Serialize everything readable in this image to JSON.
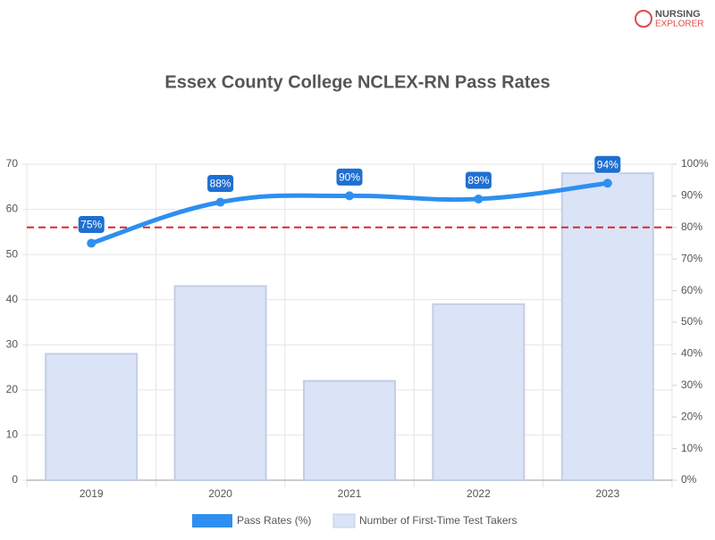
{
  "logo": {
    "line1": "NURSING",
    "line2": "EXPLORER"
  },
  "chart_data": {
    "type": "bar_line",
    "title": "Essex County College NCLEX-RN Pass Rates",
    "categories": [
      "2019",
      "2020",
      "2021",
      "2022",
      "2023"
    ],
    "series": [
      {
        "name": "Pass Rates (%)",
        "color": "#2e8ff0",
        "axis": "y2",
        "kind": "line",
        "values": [
          75,
          88,
          90,
          89,
          94
        ],
        "value_labels": [
          "75%",
          "88%",
          "90%",
          "89%",
          "94%"
        ]
      },
      {
        "name": "Number of First-Time Test Takers",
        "color": "#dbe3f7",
        "axis": "y",
        "kind": "bar",
        "values": [
          28,
          43,
          22,
          39,
          68
        ]
      }
    ],
    "reference_line": {
      "value": 80,
      "axis": "y2",
      "color": "#e0262b"
    },
    "ylim": [
      0,
      70
    ],
    "yticks": [
      0,
      10,
      20,
      30,
      40,
      50,
      60,
      70
    ],
    "y2lim": [
      0,
      100
    ],
    "y2ticks": [
      {
        "value": 0,
        "label": "0%"
      },
      {
        "value": 10,
        "label": "10%"
      },
      {
        "value": 20,
        "label": "20%"
      },
      {
        "value": 30,
        "label": "30%"
      },
      {
        "value": 40,
        "label": "40%"
      },
      {
        "value": 50,
        "label": "50%"
      },
      {
        "value": 60,
        "label": "60%"
      },
      {
        "value": 70,
        "label": "70%"
      },
      {
        "value": 80,
        "label": "80%"
      },
      {
        "value": 90,
        "label": "90%"
      },
      {
        "value": 100,
        "label": "100%"
      }
    ],
    "grid": true,
    "legend": "bottom"
  }
}
